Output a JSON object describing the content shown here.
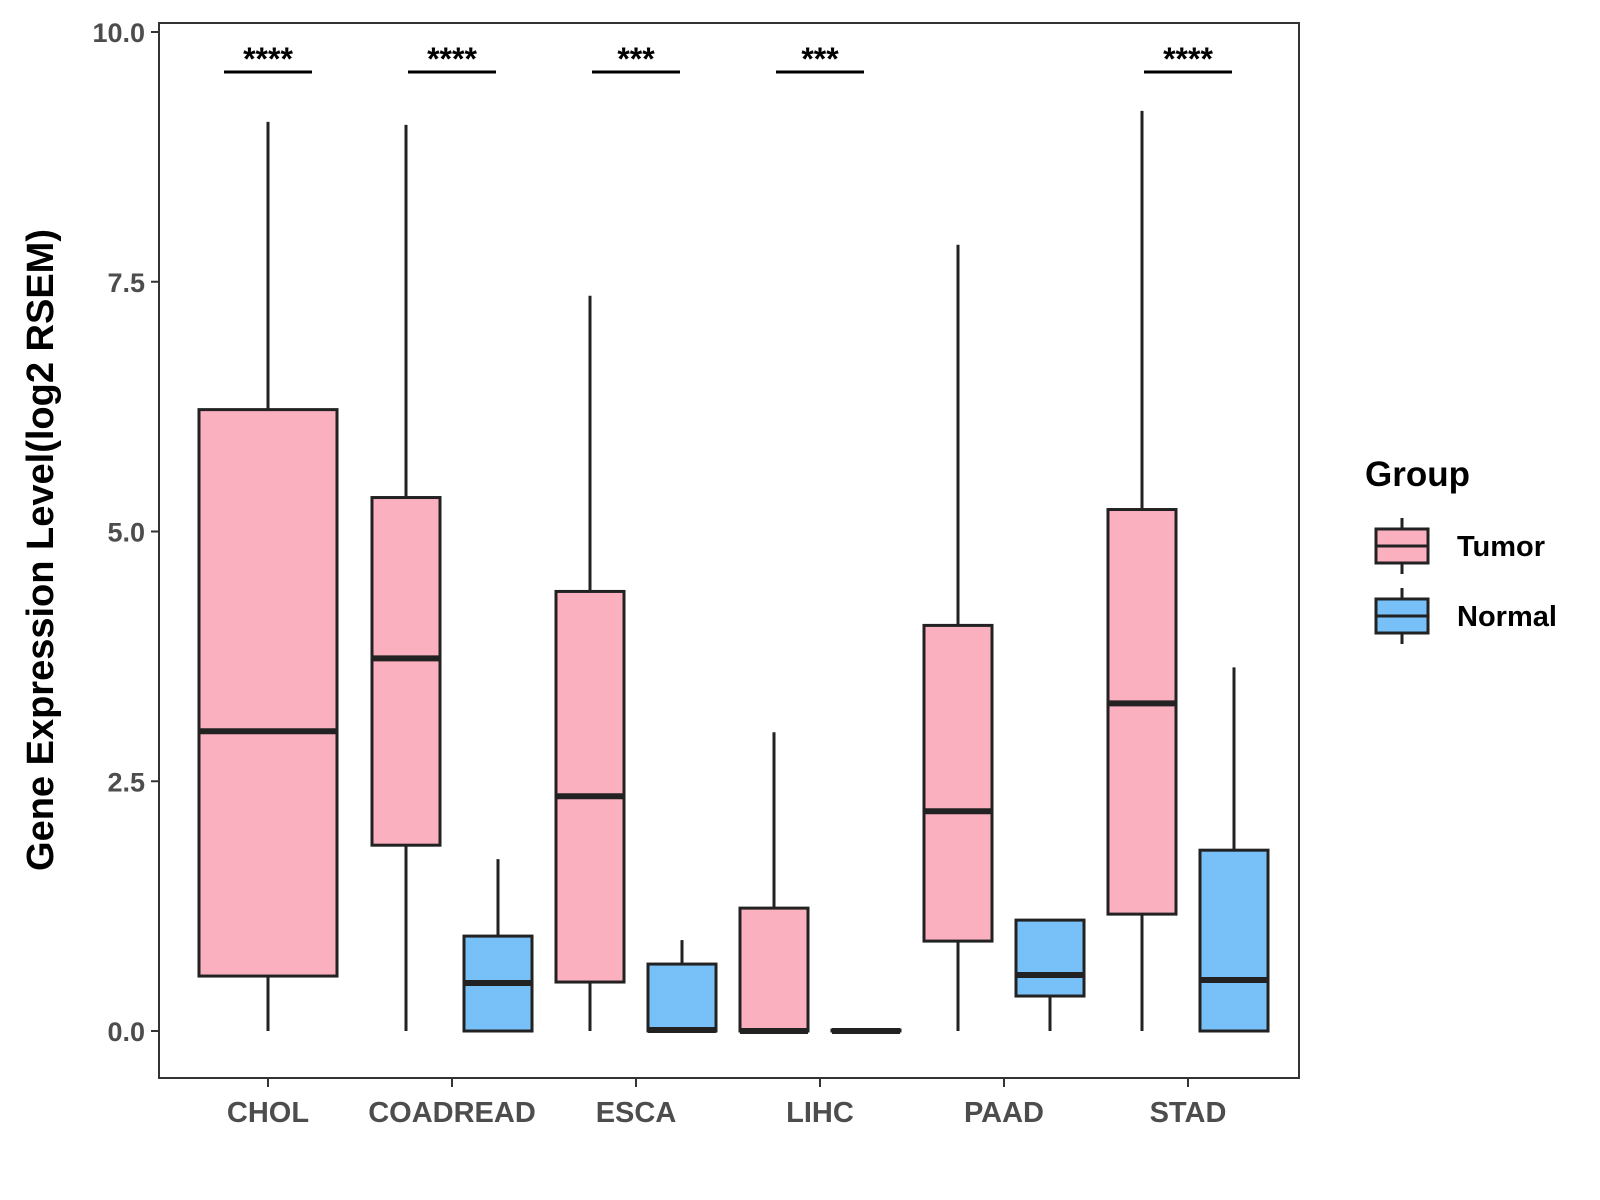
{
  "chart_data": {
    "type": "boxplot",
    "title": "",
    "xlabel": "",
    "ylabel": "Gene Expression Level(log2 RSEM)",
    "ylim": [
      -0.47,
      10.1
    ],
    "yticks": [
      "0.0",
      "2.5",
      "5.0",
      "7.5",
      "10.0"
    ],
    "ytick_values": [
      0,
      2.5,
      5,
      7.5,
      10
    ],
    "categories": [
      "CHOL",
      "COADREAD",
      "ESCA",
      "LIHC",
      "PAAD",
      "STAD"
    ],
    "legend": {
      "title": "Group",
      "position": "right",
      "entries": [
        {
          "name": "Tumor",
          "color": "#FBB0C0"
        },
        {
          "name": "Normal",
          "color": "#78C1F8"
        }
      ]
    },
    "series": [
      {
        "name": "Tumor",
        "color": "#FBB0C0",
        "boxes": [
          {
            "category": "CHOL",
            "min": 0.0,
            "q1": 0.55,
            "median": 3.0,
            "q3": 6.22,
            "max": 9.1
          },
          {
            "category": "COADREAD",
            "min": 0.0,
            "q1": 1.86,
            "median": 3.73,
            "q3": 5.34,
            "max": 9.07
          },
          {
            "category": "ESCA",
            "min": 0.0,
            "q1": 0.49,
            "median": 2.35,
            "q3": 4.4,
            "max": 7.36
          },
          {
            "category": "LIHC",
            "min": 0.0,
            "q1": 0.0,
            "median": 0.0,
            "q3": 1.23,
            "max": 2.99
          },
          {
            "category": "PAAD",
            "min": 0.0,
            "q1": 0.9,
            "median": 2.2,
            "q3": 4.06,
            "max": 7.87
          },
          {
            "category": "STAD",
            "min": 0.0,
            "q1": 1.17,
            "median": 3.28,
            "q3": 5.22,
            "max": 9.21
          }
        ]
      },
      {
        "name": "Normal",
        "color": "#78C1F8",
        "boxes": [
          {
            "category": "COADREAD",
            "min": 0.0,
            "q1": 0.0,
            "median": 0.48,
            "q3": 0.95,
            "max": 1.72
          },
          {
            "category": "ESCA",
            "min": 0.0,
            "q1": 0.0,
            "median": 0.01,
            "q3": 0.67,
            "max": 0.91
          },
          {
            "category": "LIHC",
            "min": 0.0,
            "q1": 0.0,
            "median": 0.0,
            "q3": 0.01,
            "max": 0.01
          },
          {
            "category": "PAAD",
            "min": 0.0,
            "q1": 0.35,
            "median": 0.56,
            "q3": 1.11,
            "max": 1.11
          },
          {
            "category": "STAD",
            "min": 0.0,
            "q1": 0.0,
            "median": 0.51,
            "q3": 1.81,
            "max": 3.64
          }
        ]
      }
    ],
    "significance": [
      {
        "category": "CHOL",
        "label": "****"
      },
      {
        "category": "COADREAD",
        "label": "****"
      },
      {
        "category": "ESCA",
        "label": "***"
      },
      {
        "category": "LIHC",
        "label": "***"
      },
      {
        "category": "STAD",
        "label": "****"
      }
    ],
    "significance_y": 9.6
  }
}
